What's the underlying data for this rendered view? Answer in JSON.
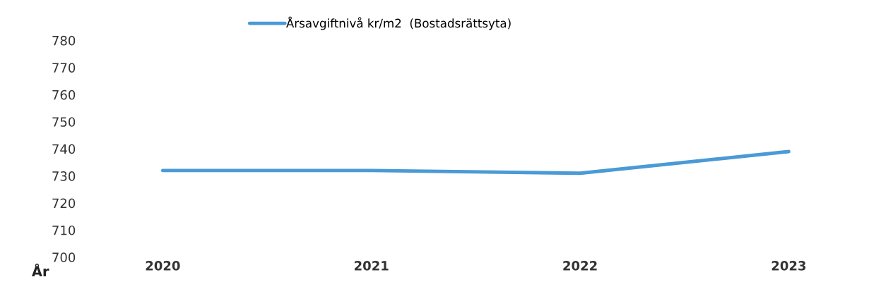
{
  "chart_data": {
    "type": "line",
    "xlabel": "År",
    "categories": [
      "2020",
      "2021",
      "2022",
      "2023"
    ],
    "series": [
      {
        "name": "Årsavgiftnivå kr/m2  (Bostadsrättsyta)",
        "color": "#4a9ad6",
        "values": [
          732,
          732,
          731,
          739
        ]
      }
    ],
    "ylim": [
      700,
      780
    ],
    "yticks": [
      700,
      710,
      720,
      730,
      740,
      750,
      760,
      770,
      780
    ],
    "grid": false,
    "legend": "top",
    "marker": "none",
    "line_style": "solid"
  }
}
